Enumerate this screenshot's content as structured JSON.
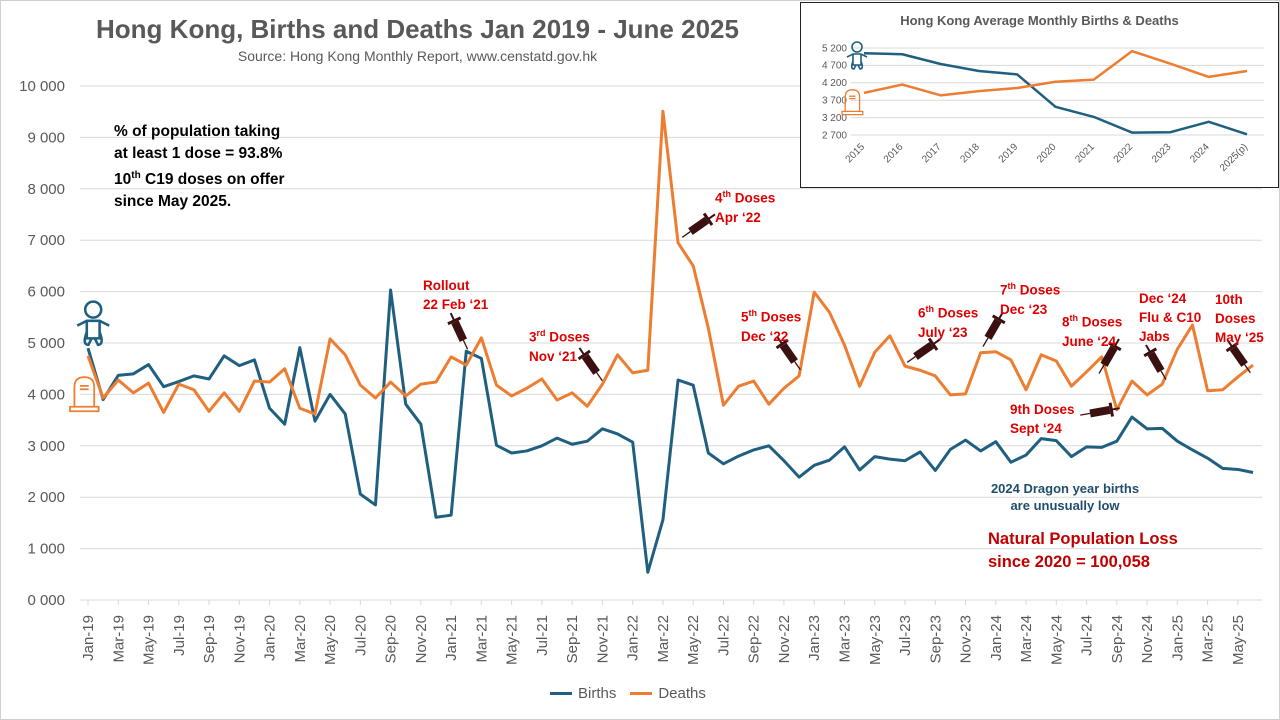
{
  "title": "Hong Kong, Births and Deaths Jan 2019 - June 2025",
  "subtitle": "Source: Hong Kong Monthly Report, www.censtatd.gov.hk",
  "dose_info": {
    "line1": "% of population taking",
    "line2": "at least 1 dose = 93.8%",
    "line3_num": "10",
    "line3_sup": "th",
    "line3_rest": " C19 doses on offer",
    "line4": "since May 2025."
  },
  "dragon_note": {
    "line1": "2024 Dragon year births",
    "line2": "are unusually low"
  },
  "loss_note": {
    "line1": "Natural Population Loss",
    "line2": "since 2020 = 100,058"
  },
  "annotations": [
    {
      "l1": "Rollout",
      "l2": "22 Feb ‘21"
    },
    {
      "n": "3",
      "s": "rd",
      "r": " Doses",
      "l2": "Nov ‘21"
    },
    {
      "n": "4",
      "s": "th",
      "r": " Doses",
      "l2": "Apr ‘22"
    },
    {
      "n": "5",
      "s": "th",
      "r": " Doses",
      "l2": "Dec ‘22"
    },
    {
      "n": "6",
      "s": "th",
      "r": " Doses",
      "l2": "July ‘23"
    },
    {
      "n": "7",
      "s": "th",
      "r": " Doses",
      "l2": "Dec ‘23"
    },
    {
      "n": "8",
      "s": "th",
      "r": " Doses",
      "l2": "June ‘24"
    },
    {
      "l1": "9th Doses",
      "l2": "Sept ‘24"
    },
    {
      "l1": "Dec ‘24",
      "l2": "Flu & C10",
      "l3": "Jabs"
    },
    {
      "l1": "10th",
      "l2": "Doses",
      "l3": "May ‘25"
    }
  ],
  "colors": {
    "births": "#1f5f7f",
    "deaths": "#ed7d31",
    "grid": "#d9d9d9",
    "annotation": "#e00000"
  },
  "chart_data": [
    {
      "type": "line",
      "title": "Hong Kong, Births and Deaths Jan 2019 - June 2025",
      "ylim": [
        0,
        10000
      ],
      "grid": true,
      "legend": "bottom",
      "ytick_labels": [
        "0 000",
        "1 000",
        "2 000",
        "3 000",
        "4 000",
        "5 000",
        "6 000",
        "7 000",
        "8 000",
        "9 000",
        "10 000"
      ],
      "x": [
        "Jan-19",
        "Feb-19",
        "Mar-19",
        "Apr-19",
        "May-19",
        "Jun-19",
        "Jul-19",
        "Aug-19",
        "Sep-19",
        "Oct-19",
        "Nov-19",
        "Dec-19",
        "Jan-20",
        "Feb-20",
        "Mar-20",
        "Apr-20",
        "May-20",
        "Jun-20",
        "Jul-20",
        "Aug-20",
        "Sep-20",
        "Oct-20",
        "Nov-20",
        "Dec-20",
        "Jan-21",
        "Feb-21",
        "Mar-21",
        "Apr-21",
        "May-21",
        "Jun-21",
        "Jul-21",
        "Aug-21",
        "Sep-21",
        "Oct-21",
        "Nov-21",
        "Dec-21",
        "Jan-22",
        "Feb-22",
        "Mar-22",
        "Apr-22",
        "May-22",
        "Jun-22",
        "Jul-22",
        "Aug-22",
        "Sep-22",
        "Oct-22",
        "Nov-22",
        "Dec-22",
        "Jan-23",
        "Feb-23",
        "Mar-23",
        "Apr-23",
        "May-23",
        "Jun-23",
        "Jul-23",
        "Aug-23",
        "Sep-23",
        "Oct-23",
        "Nov-23",
        "Dec-23",
        "Jan-24",
        "Feb-24",
        "Mar-24",
        "Apr-24",
        "May-24",
        "Jun-24",
        "Jul-24",
        "Aug-24",
        "Sep-24",
        "Oct-24",
        "Nov-24",
        "Dec-24",
        "Jan-25",
        "Feb-25",
        "Mar-25",
        "Apr-25",
        "May-25",
        "Jun-25"
      ],
      "series": [
        {
          "name": "Births",
          "values": [
            4900,
            3900,
            4370,
            4400,
            4580,
            4150,
            4250,
            4360,
            4300,
            4750,
            4560,
            4670,
            3730,
            3420,
            4910,
            3480,
            4000,
            3620,
            2060,
            1850,
            6030,
            3810,
            3420,
            1610,
            1650,
            4840,
            4700,
            3010,
            2860,
            2900,
            3000,
            3150,
            3030,
            3090,
            3330,
            3230,
            3070,
            540,
            1560,
            4280,
            4180,
            2860,
            2650,
            2800,
            2920,
            3000,
            2710,
            2390,
            2620,
            2720,
            2980,
            2530,
            2790,
            2740,
            2710,
            2880,
            2520,
            2930,
            3110,
            2900,
            3080,
            2680,
            2820,
            3140,
            3100,
            2790,
            2980,
            2970,
            3090,
            3560,
            3330,
            3340,
            3090,
            2920,
            2760,
            2560,
            2540,
            2480
          ]
        },
        {
          "name": "Deaths",
          "values": [
            4750,
            3930,
            4280,
            4030,
            4220,
            3650,
            4200,
            4090,
            3670,
            4030,
            3670,
            4260,
            4240,
            4500,
            3730,
            3620,
            5080,
            4770,
            4180,
            3930,
            4240,
            3970,
            4200,
            4240,
            4730,
            4570,
            5100,
            4180,
            3970,
            4120,
            4300,
            3890,
            4030,
            3770,
            4200,
            4770,
            4420,
            4470,
            9510,
            6950,
            6500,
            5290,
            3790,
            4160,
            4260,
            3810,
            4120,
            4360,
            5990,
            5600,
            4960,
            4160,
            4820,
            5140,
            4550,
            4470,
            4360,
            3990,
            4010,
            4810,
            4830,
            4670,
            4090,
            4770,
            4650,
            4160,
            4440,
            4730,
            3700,
            4260,
            3990,
            4200,
            4880,
            5350,
            4070,
            4090,
            4340,
            4570
          ]
        }
      ]
    },
    {
      "type": "line",
      "title": "Hong Kong Average Monthly Births & Deaths",
      "ylim": [
        2700,
        5200
      ],
      "grid": true,
      "ytick_labels": [
        "2 700",
        "3 200",
        "3 700",
        "4 200",
        "4 700",
        "5 200"
      ],
      "x": [
        "2015",
        "2016",
        "2017",
        "2018",
        "2019",
        "2020",
        "2021",
        "2022",
        "2023",
        "2024",
        "2025(p)"
      ],
      "series": [
        {
          "name": "Births",
          "values": [
            5050,
            5020,
            4740,
            4540,
            4440,
            3510,
            3220,
            2770,
            2780,
            3080,
            2720
          ]
        },
        {
          "name": "Deaths",
          "values": [
            3910,
            4150,
            3840,
            3960,
            4050,
            4230,
            4290,
            5110,
            4750,
            4370,
            4540
          ]
        }
      ]
    }
  ]
}
